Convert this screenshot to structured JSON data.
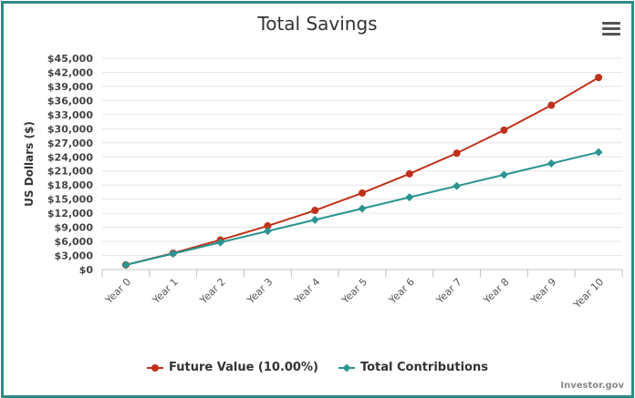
{
  "chart_data": {
    "type": "line",
    "title": "Total Savings",
    "ylabel": "US Dollars ($)",
    "xlabel": "",
    "categories": [
      "Year 0",
      "Year 1",
      "Year 2",
      "Year 3",
      "Year 4",
      "Year 5",
      "Year 6",
      "Year 7",
      "Year 8",
      "Year 9",
      "Year 10"
    ],
    "ylim": [
      0,
      45000
    ],
    "yticks": [
      0,
      3000,
      6000,
      9000,
      12000,
      15000,
      18000,
      21000,
      24000,
      27000,
      30000,
      33000,
      36000,
      39000,
      42000,
      45000
    ],
    "ytick_labels": [
      "$0",
      "$3,000",
      "$6,000",
      "$9,000",
      "$12,000",
      "$15,000",
      "$18,000",
      "$21,000",
      "$24,000",
      "$27,000",
      "$30,000",
      "$33,000",
      "$36,000",
      "$39,000",
      "$42,000",
      "$45,000"
    ],
    "grid": true,
    "legend_position": "bottom",
    "series": [
      {
        "name": "Future Value (10.00%)",
        "color": "#c0311b",
        "marker": "circle",
        "values": [
          1000,
          3500,
          6300,
          9300,
          12600,
          16300,
          20400,
          24800,
          29700,
          35000,
          40900
        ]
      },
      {
        "name": "Total Contributions",
        "color": "#2a9490",
        "marker": "diamond",
        "values": [
          1000,
          3400,
          5800,
          8200,
          10600,
          13000,
          15400,
          17800,
          20200,
          22600,
          25000
        ]
      }
    ]
  },
  "credit": "Investor.gov",
  "menu_icon": "hamburger-menu-icon"
}
